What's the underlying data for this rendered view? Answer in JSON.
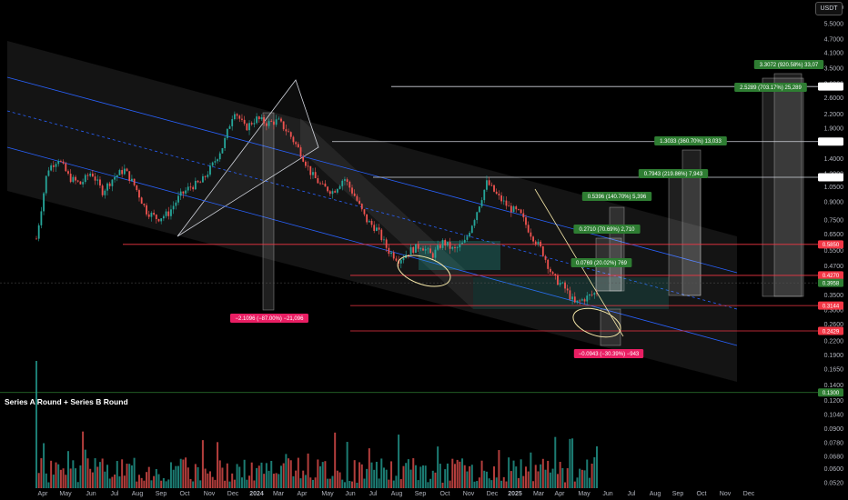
{
  "currency_button": "USDT",
  "annotation_title": "Series A Round + Series B Round",
  "colors": {
    "background": "#000000",
    "up": "#26a69a",
    "down": "#ef5350",
    "channel_line": "#2962ff",
    "horizontal_red": "#f23645",
    "tag_green": "#2e7d32",
    "tag_red": "#e91e63",
    "ellipse": "#f5e7a8"
  },
  "chart_data": {
    "type": "candlestick",
    "y_scale": "log",
    "y_axis_ticks": [
      "6.5000",
      "5.5000",
      "4.7000",
      "4.1000",
      "3.5000",
      "3.0000",
      "2.6000",
      "2.2000",
      "1.9000",
      "1.6500",
      "1.4000",
      "1.2000",
      "1.0500",
      "0.9000",
      "0.7500",
      "0.6500",
      "0.5500",
      "0.4700",
      "0.4100",
      "0.3500",
      "0.3000",
      "0.2600",
      "0.2200",
      "0.1900",
      "0.1650",
      "0.1400",
      "0.1200",
      "0.1040",
      "0.0900",
      "0.0780",
      "0.0680",
      "0.0600",
      "0.0520"
    ],
    "x_axis_labels": [
      "Apr",
      "May",
      "Jun",
      "Jul",
      "Aug",
      "Sep",
      "Oct",
      "Nov",
      "Dec",
      "2024",
      "Mar",
      "Apr",
      "May",
      "Jun",
      "Jul",
      "Aug",
      "Sep",
      "Oct",
      "Nov",
      "Dec",
      "2025",
      "Mar",
      "Apr",
      "May",
      "Jun",
      "Jul",
      "Aug",
      "Sep",
      "Oct",
      "Nov",
      "Dec"
    ],
    "price_tags": [
      {
        "value": "2.9065",
        "color": "white"
      },
      {
        "value": "1.6621",
        "color": "white"
      },
      {
        "value": "1.1562",
        "color": "white"
      },
      {
        "value": "0.5850",
        "color": "red"
      },
      {
        "value": "0.4270",
        "color": "red"
      },
      {
        "value": "0.3958",
        "color": "green"
      },
      {
        "value": "0.3144",
        "color": "red"
      },
      {
        "value": "0.2429",
        "color": "red"
      },
      {
        "value": "0.1300",
        "color": "green"
      }
    ],
    "measure_labels": [
      {
        "text": "3.3072 (920.58%) 33,07",
        "color": "green"
      },
      {
        "text": "2.5289 (703.17%) 25,289",
        "color": "green"
      },
      {
        "text": "1.3033 (360.70%) 13,033",
        "color": "green"
      },
      {
        "text": "0.7943 (219.86%) 7,943",
        "color": "green"
      },
      {
        "text": "0.5396 (140.70%) 5,396",
        "color": "green"
      },
      {
        "text": "0.2710 (70.69%) 2,710",
        "color": "green"
      },
      {
        "text": "0.0769 (20.02%) 769",
        "color": "green"
      },
      {
        "text": "−2.1096 (−87.00%) −21,096",
        "color": "red"
      },
      {
        "text": "−0.0943 (−30.39%) −943",
        "color": "red"
      }
    ],
    "price_path": [
      [
        "Apr 2023",
        0.62
      ],
      [
        "Apr 2023",
        1.25
      ],
      [
        "May 2023",
        1.4
      ],
      [
        "May 2023",
        1.15
      ],
      [
        "Jun 2023",
        1.08
      ],
      [
        "Jun 2023",
        1.22
      ],
      [
        "Jul 2023",
        1.0
      ],
      [
        "Jul 2023",
        1.15
      ],
      [
        "Aug 2023",
        1.25
      ],
      [
        "Aug 2023",
        1.05
      ],
      [
        "Sep 2023",
        0.82
      ],
      [
        "Sep 2023",
        0.76
      ],
      [
        "Oct 2023",
        0.8
      ],
      [
        "Oct 2023",
        0.95
      ],
      [
        "Nov 2023",
        1.05
      ],
      [
        "Nov 2023",
        1.1
      ],
      [
        "Dec 2023",
        1.3
      ],
      [
        "Dec 2023",
        1.6
      ],
      [
        "Jan 2024",
        2.3
      ],
      [
        "Jan 2024",
        1.9
      ],
      [
        "Feb 2024",
        2.1
      ],
      [
        "Feb 2024",
        2.0
      ],
      [
        "Mar 2024",
        2.05
      ],
      [
        "Mar 2024",
        1.8
      ],
      [
        "Mar 2024",
        1.5
      ],
      [
        "Apr 2024",
        1.2
      ],
      [
        "Apr 2024",
        1.05
      ],
      [
        "May 2024",
        1.0
      ],
      [
        "May 2024",
        1.15
      ],
      [
        "Jun 2024",
        0.95
      ],
      [
        "Jun 2024",
        0.75
      ],
      [
        "Jul 2024",
        0.68
      ],
      [
        "Jul 2024",
        0.55
      ],
      [
        "Aug 2024",
        0.5
      ],
      [
        "Aug 2024",
        0.55
      ],
      [
        "Sep 2024",
        0.58
      ],
      [
        "Sep 2024",
        0.52
      ],
      [
        "Oct 2024",
        0.6
      ],
      [
        "Oct 2024",
        0.55
      ],
      [
        "Nov 2024",
        0.6
      ],
      [
        "Nov 2024",
        0.8
      ],
      [
        "Dec 2024",
        1.1
      ],
      [
        "Dec 2024",
        0.95
      ],
      [
        "Dec 2024",
        0.85
      ],
      [
        "Jan 2025",
        0.8
      ],
      [
        "Jan 2025",
        0.65
      ],
      [
        "Feb 2025",
        0.55
      ],
      [
        "Feb 2025",
        0.42
      ],
      [
        "Mar 2025",
        0.38
      ],
      [
        "Mar 2025",
        0.32
      ],
      [
        "Mar 2025",
        0.34
      ],
      [
        "Mar 2025",
        0.36
      ]
    ]
  }
}
